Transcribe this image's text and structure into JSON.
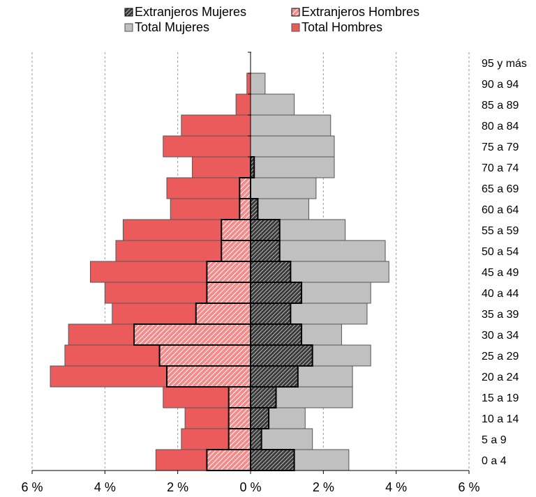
{
  "chart_data": {
    "type": "bar",
    "orientation": "horizontal",
    "subtype": "population-pyramid",
    "categories": [
      "0 a 4",
      "5 a 9",
      "10 a 14",
      "15 a 19",
      "20 a 24",
      "25 a 29",
      "30 a 34",
      "35 a 39",
      "40 a 44",
      "45 a 49",
      "50 a 54",
      "55 a 59",
      "60 a 64",
      "65 a 69",
      "70 a 74",
      "75 a 79",
      "80 a 84",
      "85 a 89",
      "90 a 94",
      "95 y más"
    ],
    "series": [
      {
        "name": "Total Hombres",
        "side": "left",
        "color": "#ec5b5b",
        "values": [
          2.6,
          1.9,
          1.8,
          2.4,
          5.5,
          5.1,
          5.0,
          3.8,
          4.0,
          4.4,
          3.7,
          3.5,
          2.2,
          2.3,
          1.6,
          2.4,
          1.9,
          0.4,
          0.1,
          0.0
        ]
      },
      {
        "name": "Extranjeros Hombres",
        "side": "left",
        "color": "#ec5b5b",
        "pattern": "hatch",
        "values": [
          1.2,
          0.6,
          0.6,
          0.6,
          2.3,
          2.5,
          3.2,
          1.5,
          1.2,
          1.2,
          0.8,
          0.8,
          0.3,
          0.3,
          0.0,
          0.0,
          0.0,
          0.0,
          0.0,
          0.0
        ]
      },
      {
        "name": "Total Mujeres",
        "side": "right",
        "color": "#c0c0c0",
        "values": [
          2.7,
          1.7,
          1.5,
          2.8,
          2.8,
          3.3,
          2.5,
          3.2,
          3.3,
          3.8,
          3.7,
          2.6,
          1.6,
          1.8,
          2.3,
          2.3,
          2.2,
          1.2,
          0.4,
          0.0
        ]
      },
      {
        "name": "Extranjeros Mujeres",
        "side": "right",
        "color": "#808080",
        "pattern": "hatch",
        "values": [
          1.2,
          0.3,
          0.5,
          0.7,
          1.3,
          1.7,
          1.4,
          1.1,
          1.4,
          1.1,
          0.8,
          0.8,
          0.2,
          0.0,
          0.1,
          0.0,
          0.0,
          0.0,
          0.0,
          0.0
        ]
      }
    ],
    "x_ticks": [
      "6 %",
      "4 %",
      "2 %",
      "0 %",
      "2 %",
      "4 %",
      "6 %"
    ],
    "xlim": [
      -6,
      6
    ],
    "grid": "vertical-dashed",
    "legend": "top"
  },
  "legend": {
    "items": [
      {
        "label": "Extranjeros Mujeres"
      },
      {
        "label": "Extranjeros Hombres"
      },
      {
        "label": "Total Mujeres"
      },
      {
        "label": "Total Hombres"
      }
    ]
  }
}
